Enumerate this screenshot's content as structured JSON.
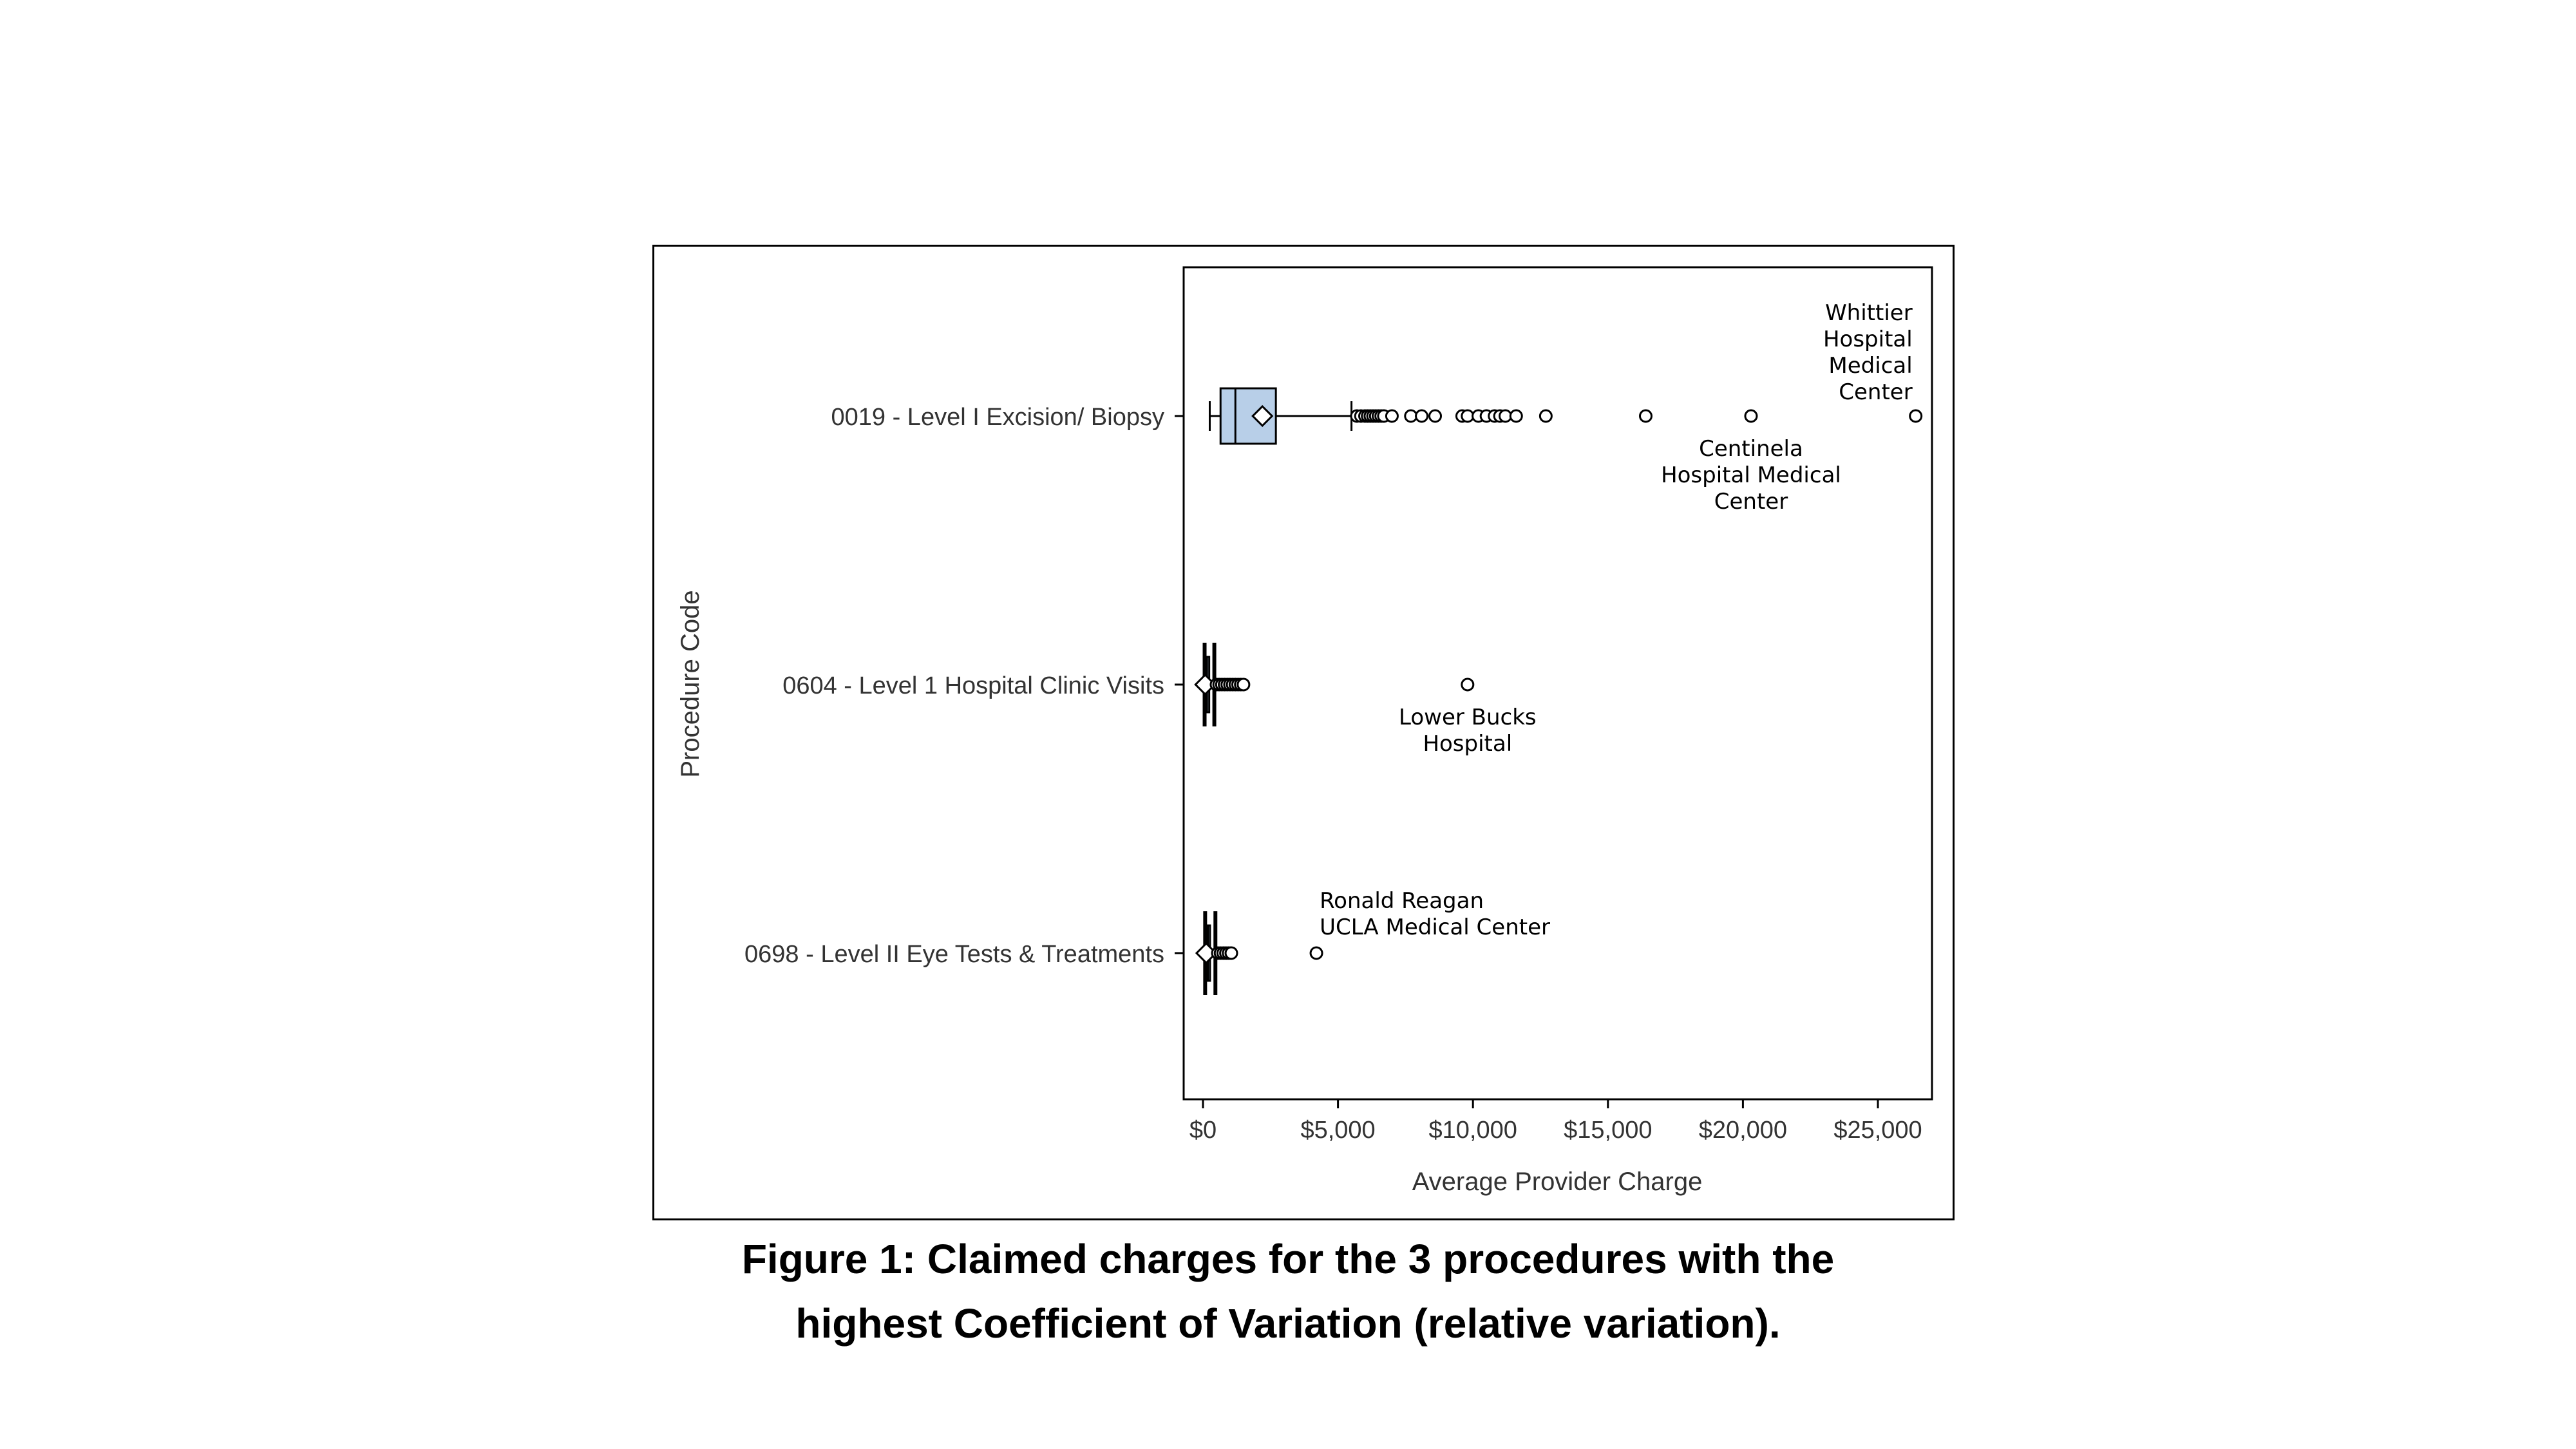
{
  "chart_data": {
    "type": "boxplot",
    "orientation": "horizontal",
    "xlabel": "Average Provider Charge",
    "ylabel": "Procedure Code",
    "xlim": [
      -1000,
      27500
    ],
    "xticks": [
      0,
      5000,
      10000,
      15000,
      20000,
      25000
    ],
    "xtick_labels": [
      "$0",
      "$5,000",
      "$10,000",
      "$15,000",
      "$20,000",
      "$25,000"
    ],
    "grid": false,
    "box_color": "#b8cfe8",
    "categories": [
      "0019 - Level I Excision/ Biopsy",
      "0604 - Level 1 Hospital Clinic Visits",
      "0698 - Level II Eye Tests & Treatments"
    ],
    "series": [
      {
        "category": "0019 - Level I Excision/ Biopsy",
        "whisker_low": 250,
        "q1": 650,
        "median": 1200,
        "q3": 2700,
        "whisker_high": 5500,
        "mean": 2200,
        "outliers": [
          5700,
          5850,
          6000,
          6100,
          6200,
          6300,
          6400,
          6500,
          6600,
          6700,
          7000,
          7700,
          8100,
          8600,
          9600,
          9800,
          10200,
          10500,
          10800,
          11000,
          11200,
          11600,
          12700,
          16400,
          20300,
          26400
        ]
      },
      {
        "category": "0604 - Level 1 Hospital Clinic Visits",
        "whisker_low": 60,
        "q1": 100,
        "median": 150,
        "q3": 230,
        "whisker_high": 420,
        "mean": 80,
        "outliers": [
          500,
          600,
          700,
          800,
          900,
          1000,
          1100,
          1200,
          1300,
          1400,
          1500,
          9800
        ]
      },
      {
        "category": "0698 - Level II Eye Tests & Treatments",
        "whisker_low": 80,
        "q1": 130,
        "median": 180,
        "q3": 260,
        "whisker_high": 460,
        "mean": 120,
        "outliers": [
          550,
          650,
          750,
          850,
          950,
          1050,
          4200
        ]
      }
    ],
    "annotations": [
      {
        "category_index": 0,
        "value": 26400,
        "lines": [
          "Whittier",
          "Hospital",
          "Medical",
          "Center"
        ]
      },
      {
        "category_index": 0,
        "value": 20300,
        "lines": [
          "Centinela",
          "Hospital Medical",
          "Center"
        ]
      },
      {
        "category_index": 1,
        "value": 9800,
        "lines": [
          "Lower Bucks",
          "Hospital"
        ]
      },
      {
        "category_index": 2,
        "value": 4200,
        "lines": [
          "Ronald Reagan",
          "UCLA Medical Center"
        ]
      }
    ]
  },
  "caption": {
    "line1": "Figure 1: Claimed charges for the 3 procedures with the",
    "line2": "highest Coefficient of Variation (relative variation)."
  }
}
